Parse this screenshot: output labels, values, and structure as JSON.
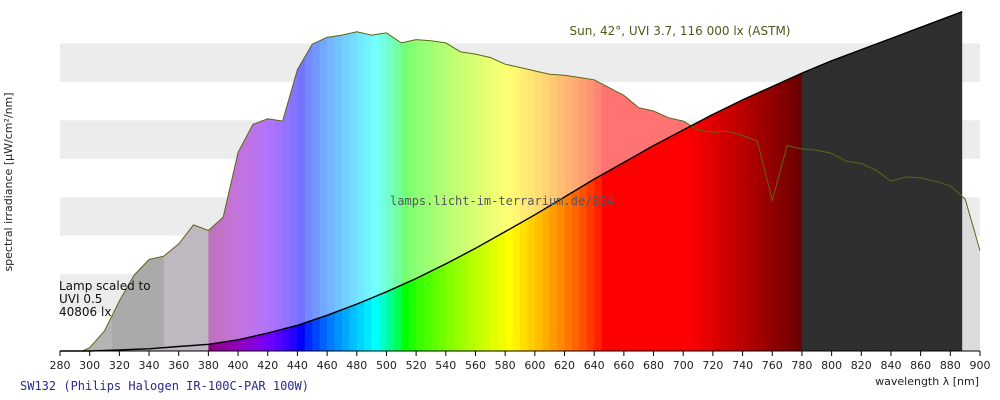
{
  "chart_data": {
    "type": "area",
    "xlabel": "wavelength λ [nm]",
    "ylabel": "spectral irradiance [µW/cm²/nm]",
    "xlim": [
      280,
      900
    ],
    "x_ticks": [
      280,
      300,
      320,
      340,
      360,
      380,
      400,
      420,
      440,
      460,
      480,
      500,
      520,
      540,
      560,
      580,
      600,
      620,
      640,
      660,
      680,
      700,
      720,
      740,
      760,
      780,
      800,
      820,
      840,
      860,
      880,
      900
    ],
    "grid": "horizontal bands",
    "y_tick_labels_shown": false,
    "sun_label": "Sun, 42°, UVI 3.7, 116 000 lx (ASTM)",
    "lamp_label_lines": [
      "Lamp scaled to",
      "UVI 0.5",
      "40806 lx"
    ],
    "watermark": "lamps.licht-im-terrarium.de/854",
    "footer_title": "SW132 (Philips Halogen IR-100C-PAR 100W)",
    "series": [
      {
        "name": "Philips Halogen IR-100C-PAR 100W",
        "x": [
          280,
          300,
          320,
          340,
          360,
          380,
          400,
          420,
          440,
          460,
          480,
          500,
          520,
          540,
          560,
          580,
          600,
          620,
          640,
          660,
          680,
          700,
          720,
          740,
          760,
          780,
          800,
          820,
          840,
          860,
          880,
          888
        ],
        "y": [
          0.0,
          0.0,
          0.1,
          0.2,
          0.4,
          0.6,
          1.0,
          1.6,
          2.3,
          3.2,
          4.2,
          5.3,
          6.5,
          7.8,
          9.2,
          10.7,
          12.2,
          13.8,
          15.4,
          16.9,
          18.4,
          19.8,
          21.2,
          22.5,
          23.7,
          24.9,
          26.0,
          27.0,
          28.0,
          29.0,
          30.0,
          30.4
        ]
      },
      {
        "name": "Sun, 42°, UVI 3.7, 116 000 lx (ASTM)",
        "x": [
          295,
          300,
          310,
          320,
          330,
          340,
          350,
          360,
          370,
          380,
          390,
          400,
          410,
          420,
          430,
          440,
          450,
          460,
          470,
          480,
          490,
          500,
          510,
          520,
          530,
          540,
          550,
          560,
          570,
          580,
          590,
          600,
          610,
          620,
          630,
          640,
          650,
          660,
          670,
          680,
          690,
          700,
          710,
          720,
          730,
          740,
          750,
          760,
          770,
          780,
          790,
          800,
          810,
          820,
          830,
          840,
          850,
          860,
          870,
          880,
          890,
          900
        ],
        "y": [
          0.0,
          0.3,
          1.8,
          4.5,
          6.8,
          8.2,
          8.5,
          9.6,
          11.3,
          10.8,
          12.0,
          17.8,
          20.3,
          20.8,
          20.6,
          25.2,
          27.5,
          28.1,
          28.3,
          28.6,
          28.3,
          28.5,
          27.6,
          27.9,
          27.8,
          27.6,
          26.8,
          26.6,
          26.3,
          25.7,
          25.4,
          25.1,
          24.8,
          24.7,
          24.5,
          24.3,
          23.6,
          22.9,
          21.8,
          21.5,
          20.9,
          20.6,
          19.8,
          19.6,
          19.7,
          19.3,
          18.8,
          13.5,
          18.4,
          18.1,
          18.0,
          17.7,
          17.0,
          16.8,
          16.2,
          15.2,
          15.6,
          15.5,
          15.2,
          14.8,
          13.6,
          9.0
        ]
      }
    ]
  }
}
